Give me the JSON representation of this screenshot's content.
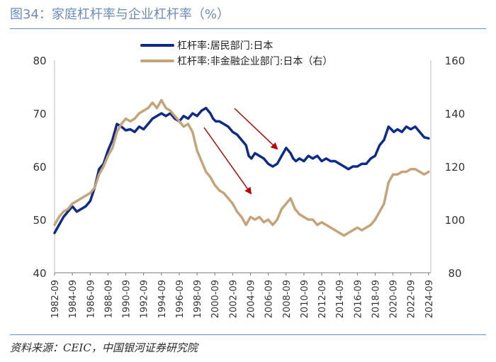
{
  "figure": {
    "title": "图34：家庭杠杆率与企业杠杆率（%）",
    "source": "资料来源：CEIC，中国银河证券研究院"
  },
  "chart_data": {
    "type": "line",
    "title": "图34：家庭杠杆率与企业杠杆率（%）",
    "xlabel": "",
    "ylabel": "",
    "x_ticks": [
      "1982-09",
      "1984-09",
      "1986-09",
      "1988-09",
      "1990-09",
      "1992-09",
      "1994-09",
      "1996-09",
      "1998-09",
      "2000-09",
      "2002-09",
      "2004-09",
      "2006-09",
      "2008-09",
      "2010-09",
      "2012-09",
      "2014-09",
      "2016-09",
      "2018-09",
      "2020-09",
      "2022-09",
      "2024-09"
    ],
    "x_range": [
      1982.5,
      2024.75
    ],
    "y_left": {
      "ylim": [
        40,
        80
      ],
      "ticks": [
        40,
        50,
        60,
        70,
        80
      ]
    },
    "y_right": {
      "ylim": [
        80,
        160
      ],
      "ticks": [
        80,
        100,
        120,
        140,
        160
      ]
    },
    "legend_position": "top-center",
    "series": [
      {
        "name": "杠杆率:居民部门:日本",
        "axis": "left",
        "color": "#0d2b8c",
        "x": [
          1982.5,
          1983.0,
          1983.5,
          1984.0,
          1984.5,
          1985.0,
          1985.5,
          1986.0,
          1986.5,
          1987.0,
          1987.5,
          1988.0,
          1988.5,
          1989.0,
          1989.5,
          1990.0,
          1990.5,
          1991.0,
          1991.5,
          1992.0,
          1992.5,
          1993.0,
          1993.5,
          1994.0,
          1994.5,
          1995.0,
          1995.5,
          1996.0,
          1996.5,
          1997.0,
          1997.5,
          1998.0,
          1998.5,
          1999.0,
          1999.5,
          2000.0,
          2000.3,
          2000.6,
          2001.0,
          2001.5,
          2002.0,
          2002.5,
          2003.0,
          2003.5,
          2004.0,
          2004.3,
          2004.6,
          2005.0,
          2005.5,
          2006.0,
          2006.5,
          2007.0,
          2007.5,
          2008.0,
          2008.5,
          2009.0,
          2009.3,
          2009.6,
          2010.0,
          2010.5,
          2011.0,
          2011.5,
          2012.0,
          2012.5,
          2013.0,
          2013.5,
          2014.0,
          2014.5,
          2015.0,
          2015.5,
          2016.0,
          2016.5,
          2017.0,
          2017.5,
          2018.0,
          2018.5,
          2019.0,
          2019.5,
          2020.0,
          2020.3,
          2020.6,
          2021.0,
          2021.5,
          2022.0,
          2022.5,
          2023.0,
          2023.5,
          2024.0,
          2024.5
        ],
        "values": [
          47.5,
          49.0,
          50.5,
          51.5,
          52.5,
          51.5,
          52.0,
          52.5,
          53.5,
          56.0,
          59.5,
          60.5,
          63.0,
          65.0,
          68.0,
          67.5,
          66.8,
          67.0,
          66.5,
          67.5,
          67.0,
          68.0,
          69.0,
          69.5,
          70.0,
          69.5,
          70.0,
          69.0,
          68.5,
          69.5,
          69.0,
          70.0,
          69.5,
          70.5,
          71.0,
          70.0,
          69.0,
          68.5,
          68.5,
          68.0,
          67.5,
          66.5,
          66.0,
          65.0,
          64.0,
          62.0,
          61.5,
          62.5,
          62.0,
          61.5,
          60.5,
          60.0,
          60.5,
          62.0,
          63.5,
          62.5,
          61.5,
          61.0,
          61.5,
          61.0,
          62.0,
          61.5,
          62.0,
          61.0,
          61.5,
          61.0,
          61.0,
          60.5,
          60.0,
          59.5,
          60.0,
          60.0,
          60.5,
          60.5,
          61.5,
          62.0,
          64.0,
          65.0,
          67.5,
          67.0,
          66.5,
          67.0,
          66.5,
          67.5,
          67.0,
          67.5,
          66.5,
          65.5,
          65.3
        ]
      },
      {
        "name": "杠杆率:非金融企业部门:日本（右）",
        "axis": "right",
        "color": "#c4a478",
        "x": [
          1982.5,
          1983.0,
          1983.5,
          1984.0,
          1984.5,
          1985.0,
          1985.5,
          1986.0,
          1986.5,
          1987.0,
          1987.5,
          1988.0,
          1988.5,
          1989.0,
          1989.5,
          1990.0,
          1990.5,
          1991.0,
          1991.5,
          1992.0,
          1992.5,
          1993.0,
          1993.5,
          1994.0,
          1994.5,
          1995.0,
          1995.5,
          1996.0,
          1996.5,
          1997.0,
          1997.5,
          1998.0,
          1998.5,
          1999.0,
          1999.5,
          2000.0,
          2000.5,
          2001.0,
          2001.5,
          2002.0,
          2002.5,
          2003.0,
          2003.5,
          2004.0,
          2004.5,
          2005.0,
          2005.5,
          2006.0,
          2006.5,
          2007.0,
          2007.5,
          2008.0,
          2008.5,
          2009.0,
          2009.5,
          2010.0,
          2010.5,
          2011.0,
          2011.5,
          2012.0,
          2012.5,
          2013.0,
          2013.5,
          2014.0,
          2014.5,
          2015.0,
          2015.5,
          2016.0,
          2016.5,
          2017.0,
          2017.5,
          2018.0,
          2018.5,
          2019.0,
          2019.5,
          2020.0,
          2020.5,
          2021.0,
          2021.5,
          2022.0,
          2022.5,
          2023.0,
          2023.5,
          2024.0,
          2024.5
        ],
        "values": [
          98,
          101,
          103,
          104,
          106,
          107,
          108,
          109,
          110,
          112,
          117,
          120,
          124,
          127,
          133,
          136,
          138,
          137,
          138,
          140,
          141,
          142,
          144,
          142,
          145,
          142,
          141,
          139,
          137,
          135,
          136,
          133,
          126,
          122,
          118,
          116,
          113,
          111,
          110,
          108,
          106,
          103,
          101,
          98,
          101,
          100,
          101,
          99,
          100,
          98,
          100,
          104,
          106,
          108,
          104,
          102,
          101,
          100,
          100,
          98,
          99,
          98,
          97,
          96,
          95,
          94,
          95,
          96,
          97,
          96,
          97,
          98,
          100,
          103,
          106,
          114,
          117,
          117,
          118,
          118,
          119,
          119,
          118,
          117,
          118
        ]
      }
    ]
  }
}
